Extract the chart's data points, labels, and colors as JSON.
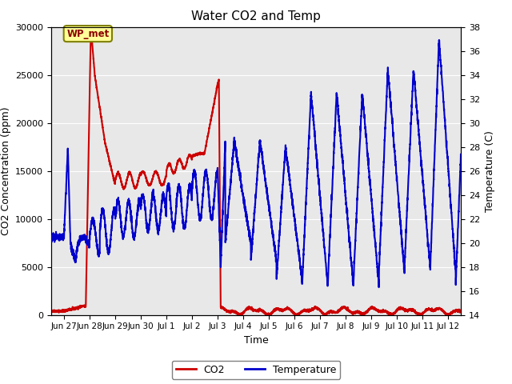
{
  "title": "Water CO2 and Temp",
  "xlabel": "Time",
  "ylabel_left": "CO2 Concentration (ppm)",
  "ylabel_right": "Temperature (C)",
  "ylim_left": [
    0,
    30000
  ],
  "ylim_right": [
    14,
    38
  ],
  "yticks_left": [
    0,
    5000,
    10000,
    15000,
    20000,
    25000,
    30000
  ],
  "yticks_right": [
    14,
    16,
    18,
    20,
    22,
    24,
    26,
    28,
    30,
    32,
    34,
    36,
    38
  ],
  "x_tick_positions": [
    1,
    2,
    3,
    4,
    5,
    6,
    7,
    8,
    9,
    10,
    11,
    12,
    13,
    14,
    15,
    16
  ],
  "x_tick_labels": [
    "Jun 27",
    "Jun 28",
    "Jun 29",
    "Jun 30",
    "Jul 1",
    "Jul 2",
    "Jul 3",
    "Jul 4",
    "Jul 5",
    "Jul 6",
    "Jul 7",
    "Jul 8",
    "Jul 9",
    "Jul 10",
    "Jul 11",
    "Jul 12"
  ],
  "xlim": [
    0.5,
    16.5
  ],
  "background_color": "#e8e8e8",
  "co2_color": "#cc0000",
  "temp_color": "#0000cc",
  "annotation_text": "WP_met",
  "annotation_bg": "#ffff99",
  "annotation_border": "#808000",
  "legend_co2": "CO2",
  "legend_temp": "Temperature",
  "grid_color": "white",
  "linewidth": 1.5
}
